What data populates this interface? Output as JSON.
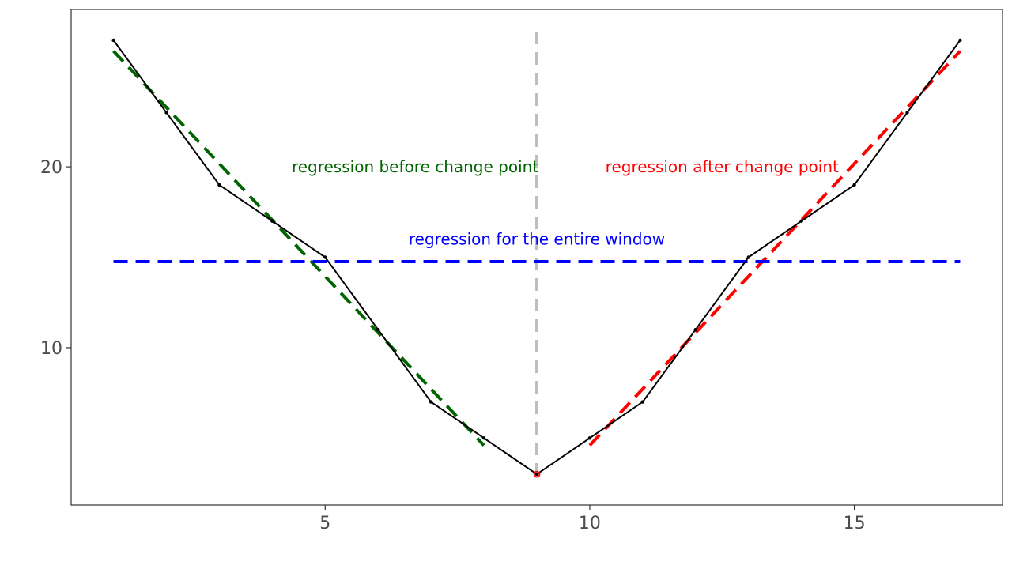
{
  "chart_data": {
    "type": "line",
    "title": "",
    "xlabel": "",
    "ylabel": "",
    "xlim": [
      0.2,
      17.8
    ],
    "ylim": [
      1.3,
      28.7
    ],
    "x_ticks": [
      5,
      10,
      15
    ],
    "x_tick_labels": [
      "5",
      "10",
      "15"
    ],
    "y_ticks": [
      10,
      20
    ],
    "y_tick_labels": [
      "10",
      "20"
    ],
    "grid": false,
    "series": [
      {
        "color": "#000000",
        "style": "solid",
        "x": [
          1,
          2,
          3,
          4,
          5,
          6,
          7,
          8,
          9,
          10,
          11,
          12,
          13,
          14,
          15,
          16,
          17
        ],
        "y": [
          27,
          23,
          19,
          17,
          15,
          11,
          7,
          5,
          3,
          5,
          7,
          11,
          15,
          17,
          19,
          23,
          27
        ]
      }
    ],
    "change_point": {
      "x": 9,
      "y": 3,
      "color": "#ff0000"
    },
    "vertical_line": {
      "x": 9,
      "color": "#bebebe",
      "style": "dashed"
    },
    "regression_lines": [
      {
        "color": "#006400",
        "style": "dashed",
        "x": [
          1,
          8
        ],
        "y": [
          26.4,
          4.6
        ]
      },
      {
        "color": "#ff0000",
        "style": "dashed",
        "x": [
          10,
          17
        ],
        "y": [
          4.6,
          26.4
        ]
      },
      {
        "color": "#0000ff",
        "style": "dashed",
        "x": [
          1,
          17
        ],
        "y": [
          14.76,
          14.76
        ]
      }
    ],
    "annotations": [
      {
        "text": "regression before change point",
        "x": 6.7,
        "y": 20,
        "color": "#006400"
      },
      {
        "text": "regression after change point",
        "x": 12.5,
        "y": 20,
        "color": "#ff0000"
      },
      {
        "text": "regression for the entire window",
        "x": 9,
        "y": 16,
        "color": "#0000ff"
      }
    ]
  }
}
